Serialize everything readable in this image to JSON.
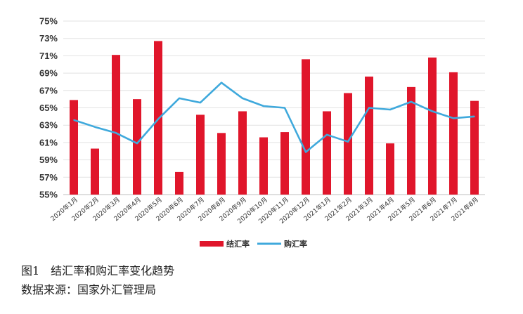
{
  "chart_data": {
    "type": "bar",
    "categories": [
      "2020年1月",
      "2020年2月",
      "2020年3月",
      "2020年4月",
      "2020年5月",
      "2020年6月",
      "2020年7月",
      "2020年8月",
      "2020年9月",
      "2020年10月",
      "2020年11月",
      "2020年12月",
      "2021年1月",
      "2021年2月",
      "2021年3月",
      "2021年4月",
      "2021年5月",
      "2021年6月",
      "2021年7月",
      "2021年8月"
    ],
    "series": [
      {
        "name": "结汇率",
        "type": "bar",
        "color": "#e0162b",
        "values": [
          65.9,
          60.3,
          71.1,
          66.0,
          72.7,
          57.6,
          64.2,
          62.1,
          64.6,
          61.6,
          62.2,
          70.6,
          64.6,
          66.7,
          68.6,
          60.9,
          67.4,
          70.8,
          69.1,
          65.8
        ]
      },
      {
        "name": "购汇率",
        "type": "line",
        "color": "#3fa9dc",
        "values": [
          63.6,
          62.8,
          62.1,
          60.9,
          63.7,
          66.1,
          65.6,
          67.9,
          66.1,
          65.2,
          65.0,
          59.9,
          61.9,
          61.1,
          65.0,
          64.8,
          65.7,
          64.6,
          63.8,
          64.0
        ]
      }
    ],
    "yticks": [
      "75%",
      "73%",
      "71%",
      "69%",
      "67%",
      "65%",
      "63%",
      "61%",
      "59%",
      "57%",
      "55%"
    ],
    "ylim": [
      55,
      75
    ],
    "grid": true,
    "legend": "bottom-center"
  },
  "caption": {
    "title": "图1　结汇率和购汇率变化趋势",
    "source": "数据来源：国家外汇管理局"
  }
}
